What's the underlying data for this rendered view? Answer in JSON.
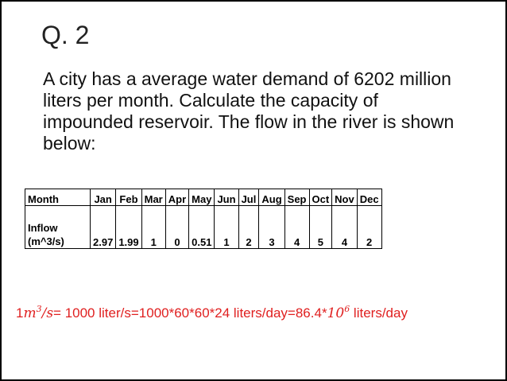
{
  "slide": {
    "title": "Q. 2",
    "question": "A city has a average water demand of 6202 million liters per month. Calculate the capacity of impounded reservoir. The flow in the river is shown below:"
  },
  "table": {
    "header_label": "Month",
    "months": [
      "Jan",
      "Feb",
      "Mar",
      "Apr",
      "May",
      "Jun",
      "Jul",
      "Aug",
      "Sep",
      "Oct",
      "Nov",
      "Dec"
    ],
    "row_label_line1": "Inflow",
    "row_label_line2": "(m^3/s)",
    "inflow": [
      "2.97",
      "1.99",
      "1",
      "0",
      "0.51",
      "1",
      "2",
      "3",
      "4",
      "5",
      "4",
      "2"
    ]
  },
  "formula": {
    "lead": "1",
    "m": "m",
    "m_exp": "3",
    "slash_s": "/s",
    "eq": "= 1000 liter/s=1000*60*60*24 liters/day=86.4*",
    "ten": "10",
    "ten_exp": "6",
    "tail": " liters/day"
  }
}
